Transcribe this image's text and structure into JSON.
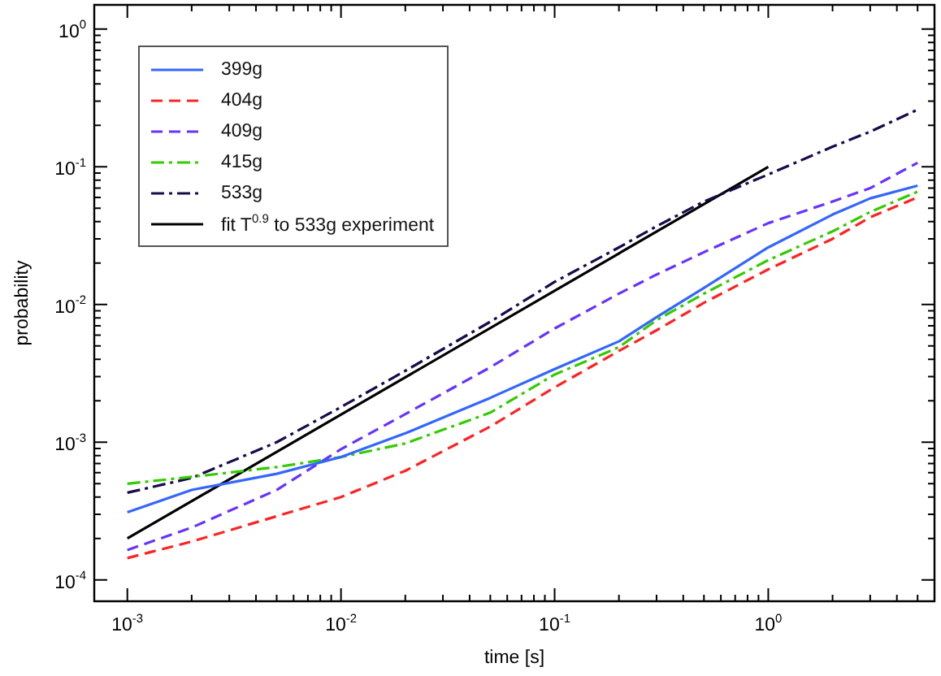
{
  "chart_data": {
    "type": "line",
    "xlabel": "time [s]",
    "ylabel": "probability",
    "log": "xy",
    "grid": false,
    "legend": "top left",
    "marker": "none",
    "xlim": [
      0.0007,
      6
    ],
    "ylim": [
      7e-05,
      1.5
    ],
    "xticks": [
      {
        "value": 0.001,
        "label": "10$^{-3}$"
      },
      {
        "value": 0.002,
        "label": null
      },
      {
        "value": 0.003,
        "label": null
      },
      {
        "value": 0.004,
        "label": null
      },
      {
        "value": 0.005,
        "label": null
      },
      {
        "value": 0.006,
        "label": null
      },
      {
        "value": 0.007,
        "label": null
      },
      {
        "value": 0.008,
        "label": null
      },
      {
        "value": 0.009,
        "label": null
      },
      {
        "value": 0.01,
        "label": "10$^{-2}$"
      },
      {
        "value": 0.02,
        "label": null
      },
      {
        "value": 0.03,
        "label": null
      },
      {
        "value": 0.04,
        "label": null
      },
      {
        "value": 0.05,
        "label": null
      },
      {
        "value": 0.06,
        "label": null
      },
      {
        "value": 0.07,
        "label": null
      },
      {
        "value": 0.08,
        "label": null
      },
      {
        "value": 0.09,
        "label": null
      },
      {
        "value": 0.1,
        "label": "10$^{-1}$"
      },
      {
        "value": 0.2,
        "label": null
      },
      {
        "value": 0.3,
        "label": null
      },
      {
        "value": 0.4,
        "label": null
      },
      {
        "value": 0.5,
        "label": null
      },
      {
        "value": 0.6,
        "label": null
      },
      {
        "value": 0.7,
        "label": null
      },
      {
        "value": 0.8,
        "label": null
      },
      {
        "value": 0.9,
        "label": null
      },
      {
        "value": 1,
        "label": "10$^{0}$"
      },
      {
        "value": 2,
        "label": null
      },
      {
        "value": 3,
        "label": null
      },
      {
        "value": 4,
        "label": null
      },
      {
        "value": 5,
        "label": null
      }
    ],
    "yticks": [
      {
        "value": 0.0001,
        "label": "10$^{-4}$"
      },
      {
        "value": 0.0002,
        "label": null
      },
      {
        "value": 0.0003,
        "label": null
      },
      {
        "value": 0.0004,
        "label": null
      },
      {
        "value": 0.0005,
        "label": null
      },
      {
        "value": 0.0006,
        "label": null
      },
      {
        "value": 0.0007,
        "label": null
      },
      {
        "value": 0.0008,
        "label": null
      },
      {
        "value": 0.0009,
        "label": null
      },
      {
        "value": 0.001,
        "label": "10$^{-3}$"
      },
      {
        "value": 0.002,
        "label": null
      },
      {
        "value": 0.003,
        "label": null
      },
      {
        "value": 0.004,
        "label": null
      },
      {
        "value": 0.005,
        "label": null
      },
      {
        "value": 0.006,
        "label": null
      },
      {
        "value": 0.007,
        "label": null
      },
      {
        "value": 0.008,
        "label": null
      },
      {
        "value": 0.009,
        "label": null
      },
      {
        "value": 0.01,
        "label": "10$^{-2}$"
      },
      {
        "value": 0.02,
        "label": null
      },
      {
        "value": 0.03,
        "label": null
      },
      {
        "value": 0.04,
        "label": null
      },
      {
        "value": 0.05,
        "label": null
      },
      {
        "value": 0.06,
        "label": null
      },
      {
        "value": 0.07,
        "label": null
      },
      {
        "value": 0.08,
        "label": null
      },
      {
        "value": 0.09,
        "label": null
      },
      {
        "value": 0.1,
        "label": "10$^{-1}$"
      },
      {
        "value": 0.2,
        "label": null
      },
      {
        "value": 0.3,
        "label": null
      },
      {
        "value": 0.4,
        "label": null
      },
      {
        "value": 0.5,
        "label": null
      },
      {
        "value": 0.6,
        "label": null
      },
      {
        "value": 0.7,
        "label": null
      },
      {
        "value": 0.8,
        "label": null
      },
      {
        "value": 0.9,
        "label": null
      },
      {
        "value": 1,
        "label": "10$^{0}$"
      }
    ],
    "x": [
      0.001,
      0.002,
      0.005,
      0.01,
      0.02,
      0.05,
      0.1,
      0.2,
      0.3,
      0.5,
      1,
      2,
      3,
      5
    ],
    "series": [
      {
        "name": "399g",
        "color": "#3366ff",
        "line_style": "solid",
        "values": [
          0.00031,
          0.00045,
          0.00059,
          0.00078,
          0.00116,
          0.0021,
          0.0034,
          0.0054,
          0.0081,
          0.0132,
          0.026,
          0.045,
          0.059,
          0.073
        ]
      },
      {
        "name": "404g",
        "color": "#ff2222",
        "line_style": "dashed",
        "values": [
          0.000144,
          0.00019,
          0.00029,
          0.0004,
          0.00062,
          0.0013,
          0.0025,
          0.0046,
          0.0065,
          0.0103,
          0.018,
          0.03,
          0.043,
          0.06
        ]
      },
      {
        "name": "409g",
        "color": "#6633ff",
        "line_style": "dashed",
        "values": [
          0.000165,
          0.00024,
          0.00045,
          0.00089,
          0.0016,
          0.0035,
          0.0067,
          0.012,
          0.0165,
          0.024,
          0.039,
          0.056,
          0.07,
          0.107
        ]
      },
      {
        "name": "415g",
        "color": "#33cc00",
        "line_style": "dashdot",
        "values": [
          0.0005,
          0.00056,
          0.00066,
          0.00078,
          0.00098,
          0.00164,
          0.0031,
          0.0049,
          0.0077,
          0.012,
          0.021,
          0.034,
          0.047,
          0.066
        ]
      },
      {
        "name": "533g",
        "color": "#1a0a4a",
        "line_style": "dashdot",
        "values": [
          0.00043,
          0.00055,
          0.001,
          0.0018,
          0.0033,
          0.0075,
          0.0146,
          0.026,
          0.037,
          0.056,
          0.088,
          0.14,
          0.18,
          0.26
        ]
      },
      {
        "name": "fit T$^{0.9}$ to 533g experiment",
        "color": "#000000",
        "line_style": "solid",
        "x": [
          0.001,
          1
        ],
        "values": [
          0.0002,
          0.1
        ]
      }
    ]
  }
}
